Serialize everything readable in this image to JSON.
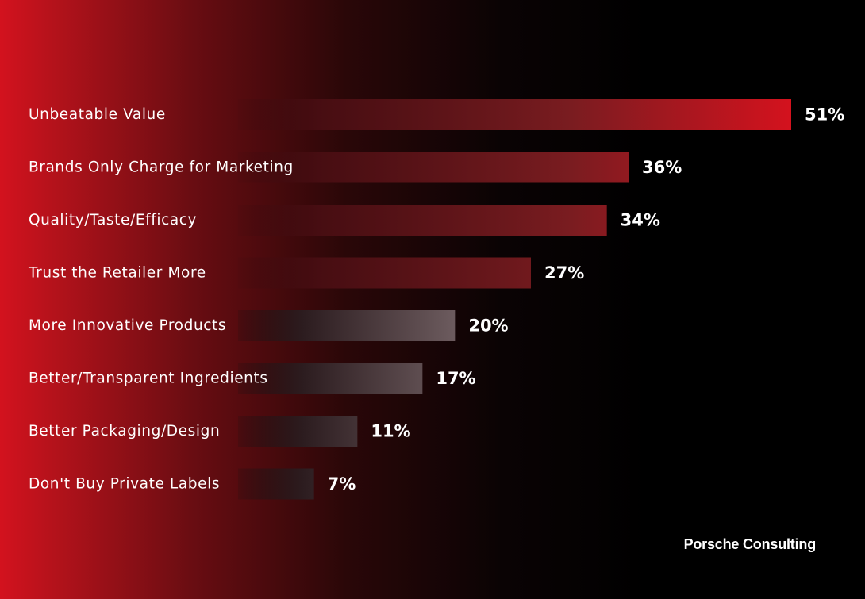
{
  "chart_data": {
    "type": "bar",
    "orientation": "horizontal",
    "categories": [
      "Unbeatable Value",
      "Brands Only Charge for Marketing",
      "Quality/Taste/Efficacy",
      "Trust the Retailer More",
      "More Innovative Products",
      "Better/Transparent Ingredients",
      "Better Packaging/Design",
      "Don't Buy Private Labels"
    ],
    "values": [
      51,
      36,
      34,
      27,
      20,
      17,
      11,
      7
    ],
    "value_labels": [
      "51%",
      "36%",
      "34%",
      "27%",
      "20%",
      "17%",
      "11%",
      "7%"
    ],
    "unit": "%",
    "grid": false,
    "legend": "none",
    "colors": {
      "bar_red_start": "#3a0a0e",
      "bar_red_end": "#d5121e",
      "bar_gray_start": "#1a0e10",
      "bar_gray_end": "#6b5a5d",
      "text": "#ffffff"
    }
  },
  "brand": "Porsche Consulting"
}
